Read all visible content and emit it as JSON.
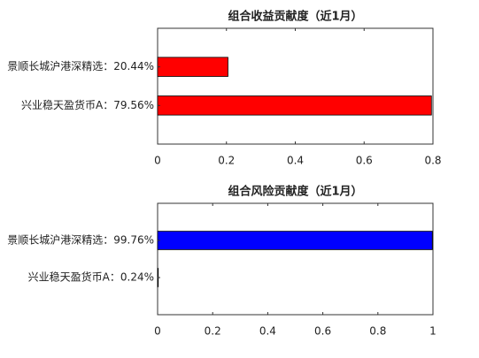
{
  "chart_data": [
    {
      "type": "barh",
      "title": "组合收益贡献度（近1月）",
      "categories": [
        "景顺长城沪港深精选：20.44%",
        "兴业稳天盈货币A：79.56%"
      ],
      "values": [
        0.2044,
        0.7956
      ],
      "color": "#ff0000",
      "xlim": [
        0,
        0.8
      ],
      "xticks": [
        0,
        0.2,
        0.4,
        0.6,
        0.8
      ]
    },
    {
      "type": "barh",
      "title": "组合风险贡献度（近1月）",
      "categories": [
        "景顺长城沪港深精选：99.76%",
        "兴业稳天盈货币A：0.24%"
      ],
      "values": [
        0.9976,
        0.0024
      ],
      "color": "#0000ff",
      "xlim": [
        0,
        1
      ],
      "xticks": [
        0,
        0.2,
        0.4,
        0.6,
        0.8,
        1
      ]
    }
  ]
}
